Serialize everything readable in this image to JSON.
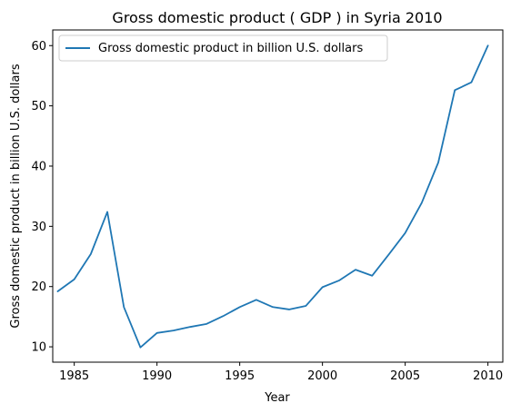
{
  "chart_data": {
    "type": "line",
    "title": "Gross domestic product ( GDP ) in Syria 2010",
    "xlabel": "Year",
    "ylabel": "Gross domestic product in billion U.S. dollars",
    "xlim": [
      1983.7,
      2010.9
    ],
    "ylim": [
      7.45,
      62.6
    ],
    "xticks": [
      1985,
      1990,
      1995,
      2000,
      2005,
      2010
    ],
    "yticks": [
      10,
      20,
      30,
      40,
      50,
      60
    ],
    "grid": false,
    "legend_position": "top-left",
    "series": [
      {
        "name": "Gross domestic product in billion U.S. dollars",
        "color": "#1f77b4",
        "x": [
          1984,
          1985,
          1986,
          1987,
          1988,
          1989,
          1990,
          1991,
          1992,
          1993,
          1994,
          1995,
          1996,
          1997,
          1998,
          1999,
          2000,
          2001,
          2002,
          2003,
          2004,
          2005,
          2006,
          2007,
          2008,
          2009,
          2010
        ],
        "y": [
          19.2,
          21.2,
          25.4,
          32.4,
          16.6,
          9.9,
          12.3,
          12.7,
          13.3,
          13.8,
          15.1,
          16.6,
          17.8,
          16.6,
          16.2,
          16.8,
          19.9,
          21.0,
          22.8,
          21.8,
          25.3,
          28.9,
          33.9,
          40.6,
          52.6,
          53.9,
          60.0
        ]
      }
    ]
  }
}
